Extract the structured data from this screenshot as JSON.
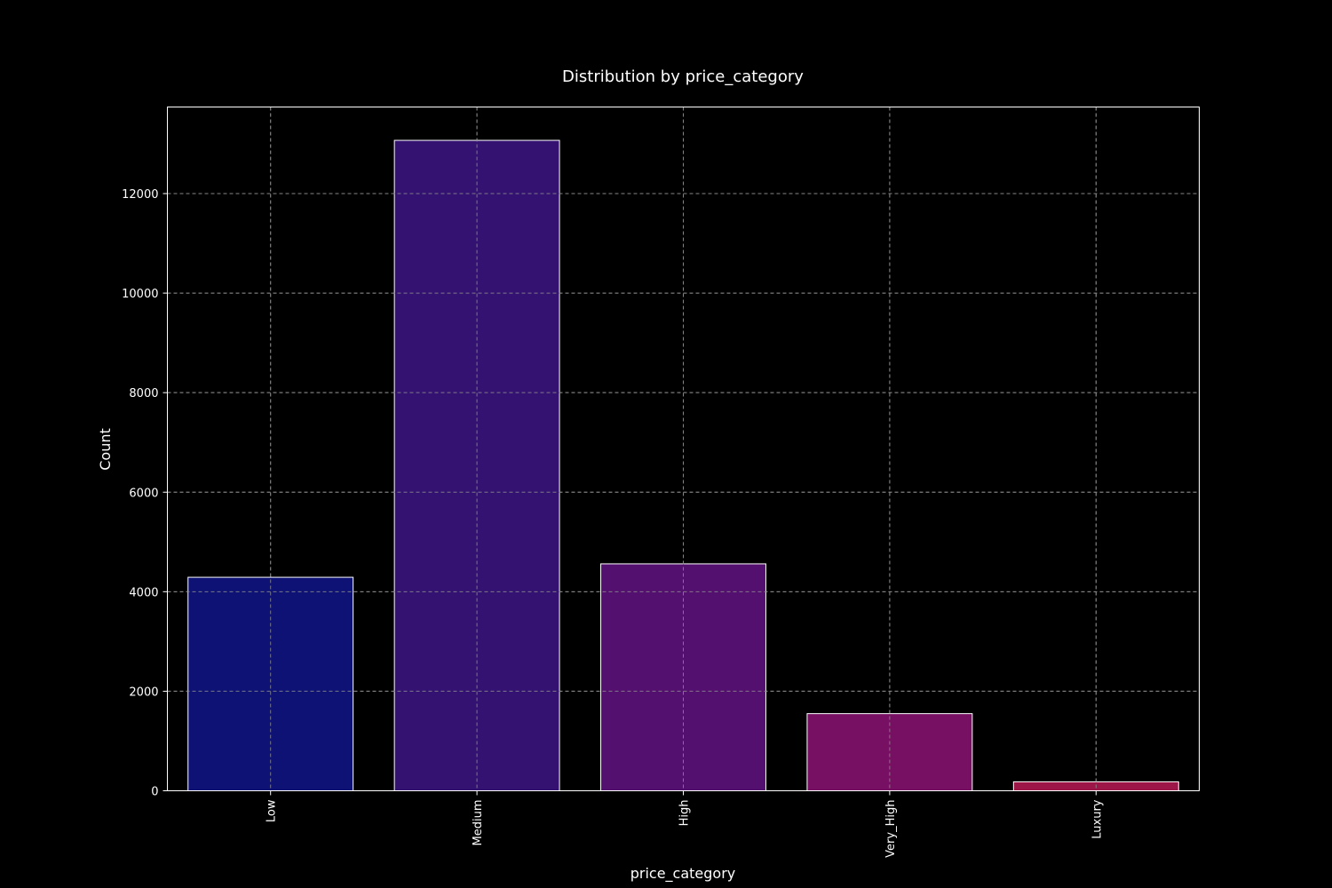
{
  "chart_data": {
    "type": "bar",
    "title": "Distribution by price_category",
    "xlabel": "price_category",
    "ylabel": "Count",
    "categories": [
      "Low",
      "Medium",
      "High",
      "Very_High",
      "Luxury"
    ],
    "values": [
      4290,
      13070,
      4560,
      1550,
      180
    ],
    "colors": [
      "#0f1275",
      "#341272",
      "#54106f",
      "#770f62",
      "#9d1648"
    ],
    "ylim": [
      0,
      13740
    ],
    "yticks": [
      0,
      2000,
      4000,
      6000,
      8000,
      10000,
      12000
    ],
    "grid": true,
    "background": "#000000"
  }
}
